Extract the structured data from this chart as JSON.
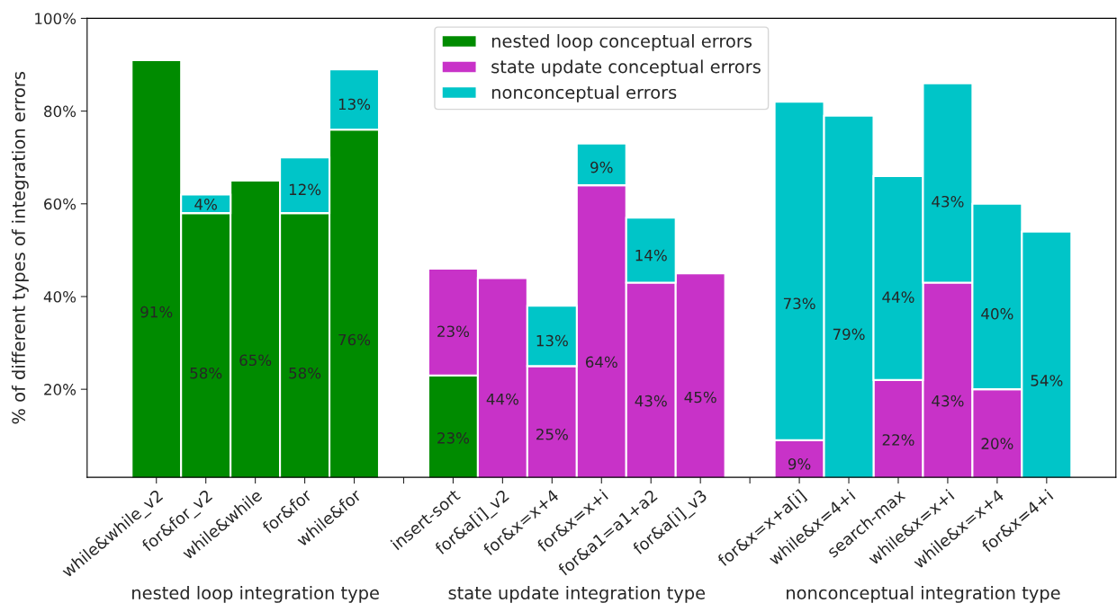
{
  "chart_data": {
    "type": "bar",
    "stacked": true,
    "ylabel": "% of different types of integration errors",
    "categories": [
      "while&while_v2",
      "for&for_v2",
      "while&while",
      "for&for",
      "while&for",
      null,
      "insert-sort",
      "for&a[i]_v2",
      "for&x=x+4",
      "for&x=x+i",
      "for&a1=a1+a2",
      "for&a[i]_v3",
      null,
      "for&x=x+a[i]",
      "while&x=4+i",
      "search-max",
      "while&x=x+i",
      "while&x=x+4",
      "for&x=4+i"
    ],
    "series": [
      {
        "name": "nested loop conceptual errors",
        "color": "#008b00",
        "values": [
          91,
          58,
          65,
          58,
          76,
          null,
          23,
          null,
          null,
          null,
          null,
          null,
          null,
          null,
          null,
          null,
          null,
          null,
          null
        ],
        "value_labels": [
          "91%",
          "58%",
          "65%",
          "58%",
          "76%",
          null,
          "23%",
          null,
          null,
          null,
          null,
          null,
          null,
          null,
          null,
          null,
          null,
          null,
          null
        ]
      },
      {
        "name": "state update conceptual errors",
        "color": "#c832c8",
        "values": [
          null,
          null,
          null,
          null,
          null,
          null,
          23,
          44,
          25,
          64,
          43,
          45,
          null,
          9,
          null,
          22,
          43,
          20,
          null
        ],
        "value_labels": [
          null,
          null,
          null,
          null,
          null,
          null,
          "23%",
          "44%",
          "25%",
          "64%",
          "43%",
          "45%",
          null,
          "9%",
          null,
          "22%",
          "43%",
          "20%",
          null
        ]
      },
      {
        "name": "nonconceptual errors",
        "color": "#00c5c8",
        "values": [
          null,
          4,
          null,
          12,
          13,
          null,
          null,
          null,
          13,
          9,
          14,
          null,
          null,
          73,
          79,
          44,
          43,
          40,
          54
        ],
        "value_labels": [
          null,
          "4%",
          null,
          "12%",
          "13%",
          null,
          null,
          null,
          "13%",
          "9%",
          "14%",
          null,
          null,
          "73%",
          "79%",
          "44%",
          "43%",
          "40%",
          "54%"
        ]
      }
    ],
    "ylim": [
      1,
      100
    ],
    "yticks": [
      {
        "value": 20,
        "label": "20%"
      },
      {
        "value": 40,
        "label": "40%"
      },
      {
        "value": 60,
        "label": "60%"
      },
      {
        "value": 80,
        "label": "80%"
      },
      {
        "value": 100,
        "label": "100%"
      }
    ],
    "annotations": [
      "nested loop integration type",
      "state update integration type",
      "nonconceptual integration type"
    ],
    "legend": "top",
    "grid": false
  }
}
